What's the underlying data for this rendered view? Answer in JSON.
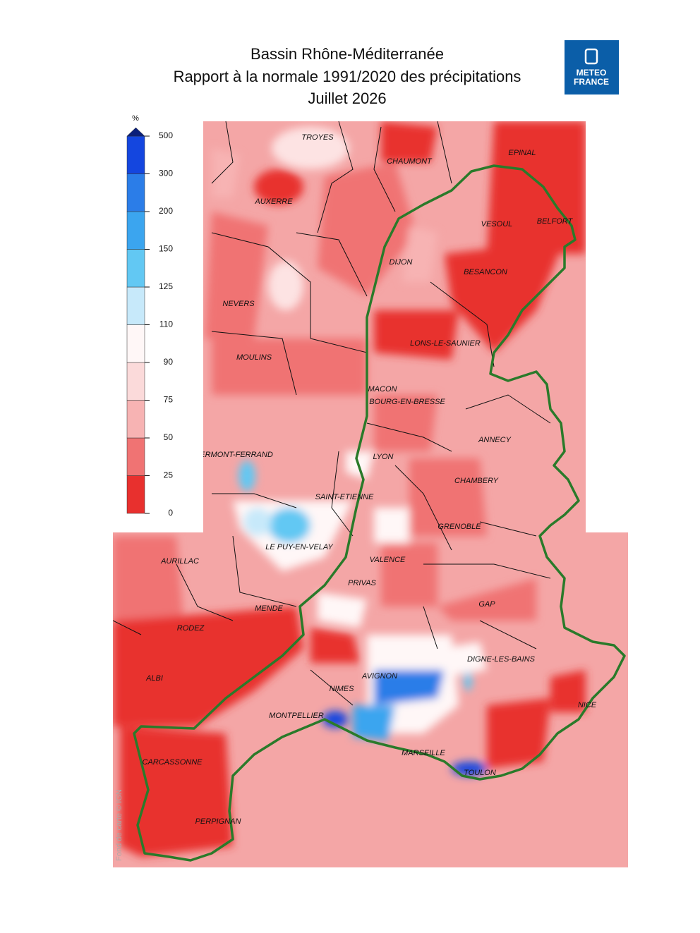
{
  "header": {
    "title_lines": [
      "Bassin Rhône-Méditerranée",
      "Rapport à la normale 1991/2020 des précipitations",
      "Juillet 2026"
    ],
    "logo": [
      "METEO",
      "FRANCE"
    ]
  },
  "legend": {
    "unit": "%",
    "ticks": [
      0,
      25,
      50,
      75,
      90,
      110,
      125,
      150,
      200,
      300,
      500
    ],
    "colors": [
      "#e8302e",
      "#f07373",
      "#f7b3b3",
      "#fbdada",
      "#fff7f7",
      "#c7e9fa",
      "#62c8f3",
      "#3ba5ef",
      "#2b7de8",
      "#1446df"
    ],
    "over_color": "#0a1f7a"
  },
  "credit": "Fond de carte © IGN",
  "cities": [
    "TROYES",
    "CHAUMONT",
    "EPINAL",
    "AUXERRE",
    "VESOUL",
    "BELFORT",
    "DIJON",
    "BESANCON",
    "NEVERS",
    "LONS-LE-SAUNIER",
    "MOULINS",
    "MACON",
    "BOURG-EN-BRESSE",
    "ANNECY",
    "CLERMONT-FERRAND",
    "LYON",
    "CHAMBERY",
    "SAINT-ETIENNE",
    "GRENOBLE",
    "LE PUY-EN-VELAY",
    "AURILLAC",
    "VALENCE",
    "PRIVAS",
    "GAP",
    "MENDE",
    "RODEZ",
    "DIGNE-LES-BAINS",
    "AVIGNON",
    "ALBI",
    "NIMES",
    "NICE",
    "MONTPELLIER",
    "MARSEILLE",
    "CARCASSONNE",
    "TOULON",
    "PERPIGNAN"
  ]
}
